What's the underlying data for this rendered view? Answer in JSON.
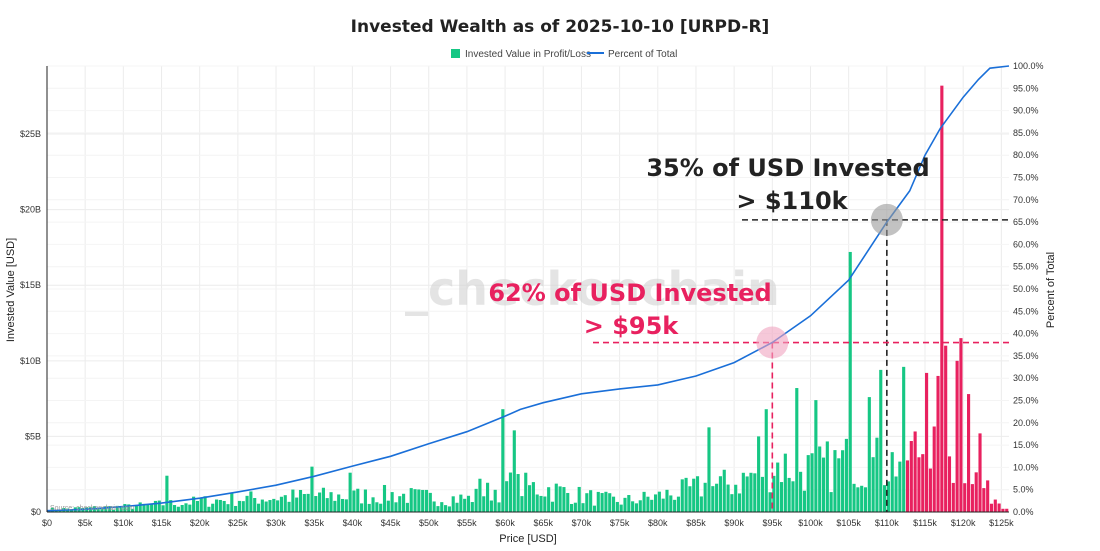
{
  "chart_data": {
    "type": "bar",
    "title": "Invested Wealth as of 2025-10-10 [URPD-R]",
    "xlabel": "Price [USD]",
    "ylabel": "Invested Value [USD]",
    "y2label": "Percent of Total",
    "xlim": [
      0,
      126000
    ],
    "ylim": [
      0,
      29500000000
    ],
    "y2lim": [
      0,
      100
    ],
    "x_ticks": [
      "$0",
      "$5k",
      "$10k",
      "$15k",
      "$20k",
      "$25k",
      "$30k",
      "$35k",
      "$40k",
      "$45k",
      "$50k",
      "$55k",
      "$60k",
      "$65k",
      "$70k",
      "$75k",
      "$80k",
      "$85k",
      "$90k",
      "$95k",
      "$100k",
      "$105k",
      "$110k",
      "$115k",
      "$120k",
      "$125k"
    ],
    "y_ticks": [
      "$0",
      "$5B",
      "$10B",
      "$15B",
      "$20B",
      "$25B"
    ],
    "y2_ticks": [
      "0.0%",
      "5.0%",
      "10.0%",
      "15.0%",
      "20.0%",
      "25.0%",
      "30.0%",
      "35.0%",
      "40.0%",
      "45.0%",
      "50.0%",
      "55.0%",
      "60.0%",
      "65.0%",
      "70.0%",
      "75.0%",
      "80.0%",
      "85.0%",
      "90.0%",
      "95.0%",
      "100.0%"
    ],
    "grid": true,
    "legend_position": "top-center",
    "series": [
      {
        "name": "Invested Value in Profit/Loss",
        "type": "bar",
        "profit_color": "#16c784",
        "loss_color": "#e8215f",
        "bin_width": 500,
        "split_price": 112500,
        "anchors": [
          [
            0,
            0.2
          ],
          [
            5000,
            0.3
          ],
          [
            10000,
            0.4
          ],
          [
            15000,
            0.6
          ],
          [
            20000,
            0.8
          ],
          [
            25000,
            1.0
          ],
          [
            30000,
            1.1
          ],
          [
            35000,
            1.2
          ],
          [
            40000,
            1.2
          ],
          [
            45000,
            1.3
          ],
          [
            50000,
            1.1
          ],
          [
            55000,
            1.0
          ],
          [
            60000,
            2.0
          ],
          [
            65000,
            1.8
          ],
          [
            70000,
            1.2
          ],
          [
            75000,
            0.8
          ],
          [
            80000,
            1.2
          ],
          [
            85000,
            1.8
          ],
          [
            90000,
            2.2
          ],
          [
            95000,
            3.6
          ],
          [
            100000,
            3.2
          ],
          [
            105000,
            3.8
          ],
          [
            110000,
            3.6
          ],
          [
            115000,
            5.0
          ],
          [
            120000,
            3.6
          ],
          [
            123000,
            1.5
          ],
          [
            125000,
            0.6
          ]
        ],
        "spikes": [
          [
            15500,
            2.4
          ],
          [
            34500,
            3.0
          ],
          [
            39500,
            2.6
          ],
          [
            56500,
            2.2
          ],
          [
            59500,
            6.8
          ],
          [
            61000,
            5.4
          ],
          [
            86500,
            5.6
          ],
          [
            93000,
            5.0
          ],
          [
            94000,
            6.8
          ],
          [
            98000,
            8.2
          ],
          [
            100500,
            7.4
          ],
          [
            105000,
            17.2
          ],
          [
            107500,
            7.6
          ],
          [
            109000,
            9.4
          ],
          [
            112000,
            9.6
          ],
          [
            115000,
            9.2
          ],
          [
            116500,
            9.0
          ],
          [
            117000,
            28.2
          ],
          [
            117500,
            11.0
          ],
          [
            119000,
            10.0
          ],
          [
            119500,
            11.5
          ],
          [
            120500,
            7.8
          ],
          [
            122000,
            5.2
          ]
        ]
      },
      {
        "name": "Percent of Total",
        "type": "line",
        "color": "#1a6fd8",
        "points": [
          [
            0,
            0.3
          ],
          [
            5000,
            0.6
          ],
          [
            10000,
            1.2
          ],
          [
            15000,
            2.0
          ],
          [
            20000,
            3.1
          ],
          [
            25000,
            4.5
          ],
          [
            30000,
            6.0
          ],
          [
            35000,
            8.0
          ],
          [
            40000,
            10.3
          ],
          [
            45000,
            12.5
          ],
          [
            50000,
            15.3
          ],
          [
            55000,
            18.0
          ],
          [
            60000,
            21.5
          ],
          [
            62000,
            23.0
          ],
          [
            65000,
            24.5
          ],
          [
            70000,
            26.5
          ],
          [
            75000,
            27.6
          ],
          [
            80000,
            28.5
          ],
          [
            85000,
            30.5
          ],
          [
            90000,
            33.5
          ],
          [
            95000,
            38.0
          ],
          [
            100000,
            44.0
          ],
          [
            105000,
            52.0
          ],
          [
            110000,
            65.0
          ],
          [
            113000,
            72.0
          ],
          [
            115000,
            80.0
          ],
          [
            117000,
            86.0
          ],
          [
            120000,
            93.0
          ],
          [
            122000,
            97.0
          ],
          [
            123500,
            99.5
          ],
          [
            126000,
            100.0
          ]
        ]
      }
    ],
    "annotations": [
      {
        "line1": "35% of USD Invested",
        "line2": "> $110k",
        "color": "#222222",
        "marker_color": "#9a9a9a",
        "x": 110000,
        "pct": 65.5
      },
      {
        "line1": "62% of USD Invested",
        "line2": "> $95k",
        "color": "#e8215f",
        "marker_color": "#f0a3bf",
        "x": 95000,
        "pct": 38.0
      }
    ],
    "watermark": "_checkonchain",
    "source": "Source: checkonchain.com"
  }
}
